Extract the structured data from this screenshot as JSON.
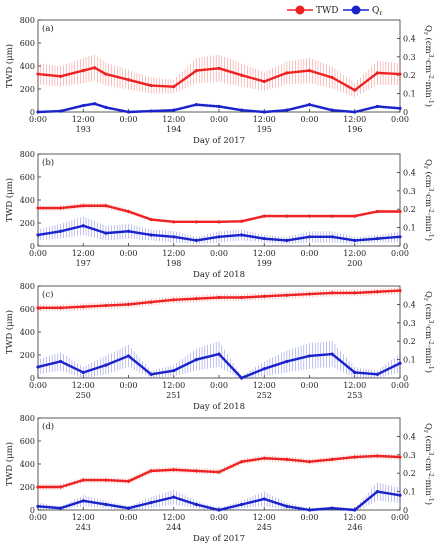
{
  "legend": {
    "twd": {
      "label": "TWD",
      "color": "#ee2222"
    },
    "q": {
      "label": "Q",
      "sub": "r",
      "color": "#1a22cc"
    }
  },
  "labels": {
    "ylabel_left": "TWD (μm)",
    "ylabel_right_main": "Q",
    "ylabel_right_sub": "r",
    "ylabel_right_rest": " (cm",
    "ylabel_right_sup1": "3",
    "ylabel_right_mid": "·cm",
    "ylabel_right_sup2": "-2",
    "ylabel_right_end": "·min",
    "ylabel_right_sup3": "-1",
    "ylabel_right_close": ")"
  },
  "chart_data": [
    {
      "type": "line",
      "panel_label": "(a)",
      "xlabel": "Day of 2017",
      "x_time_ticks": [
        "0:00",
        "12:00",
        "0:00",
        "12:00",
        "0:00",
        "12:00",
        "0:00",
        "12:00",
        "0:00"
      ],
      "x_day_ticks": [
        "193",
        "194",
        "195",
        "196"
      ],
      "ylim_left": [
        0,
        800
      ],
      "yticks_left": [
        "0",
        "200",
        "400",
        "600",
        "800"
      ],
      "ylim_right": [
        0,
        0.5
      ],
      "yticks_right": [
        "0",
        "0.1",
        "0.2",
        "0.3",
        "0.4"
      ],
      "x": [
        0,
        6,
        12,
        15,
        18,
        24,
        30,
        36,
        42,
        48,
        54,
        60,
        66,
        72,
        78,
        84,
        90,
        96
      ],
      "series": [
        {
          "name": "TWD",
          "values": [
            330,
            310,
            360,
            385,
            330,
            280,
            230,
            220,
            360,
            380,
            320,
            265,
            340,
            360,
            300,
            190,
            340,
            330
          ],
          "error": [
            90,
            90,
            110,
            115,
            100,
            85,
            70,
            60,
            110,
            120,
            100,
            80,
            100,
            110,
            95,
            60,
            105,
            95
          ]
        },
        {
          "name": "Q",
          "values": [
            0.0,
            0.005,
            0.035,
            0.045,
            0.025,
            0.0,
            0.005,
            0.01,
            0.04,
            0.03,
            0.01,
            0.0,
            0.01,
            0.04,
            0.01,
            0.0,
            0.03,
            0.02
          ],
          "error": [
            0.003,
            0.003,
            0.01,
            0.01,
            0.008,
            0.003,
            0.003,
            0.005,
            0.01,
            0.01,
            0.005,
            0.003,
            0.005,
            0.012,
            0.005,
            0.003,
            0.01,
            0.008
          ]
        }
      ]
    },
    {
      "type": "line",
      "panel_label": "(b)",
      "xlabel": "Day of 2018",
      "x_time_ticks": [
        "0:00",
        "12:00",
        "0:00",
        "12:00",
        "0:00",
        "12:00",
        "0:00",
        "12:00",
        "0:00"
      ],
      "x_day_ticks": [
        "197",
        "198",
        "199",
        "200"
      ],
      "ylim_left": [
        0,
        800
      ],
      "yticks_left": [
        "0",
        "200",
        "400",
        "600",
        "800"
      ],
      "ylim_right": [
        0,
        0.5
      ],
      "yticks_right": [
        "0",
        "0.1",
        "0.2",
        "0.3",
        "0.4"
      ],
      "x": [
        0,
        6,
        12,
        18,
        24,
        30,
        36,
        42,
        48,
        54,
        60,
        66,
        72,
        78,
        84,
        90,
        96
      ],
      "series": [
        {
          "name": "TWD",
          "values": [
            330,
            330,
            350,
            350,
            300,
            230,
            210,
            210,
            210,
            215,
            260,
            260,
            260,
            260,
            260,
            300,
            300
          ],
          "error": [
            25,
            25,
            25,
            25,
            20,
            15,
            10,
            10,
            10,
            10,
            15,
            15,
            15,
            15,
            15,
            15,
            15
          ]
        },
        {
          "name": "Q",
          "values": [
            0.06,
            0.08,
            0.11,
            0.07,
            0.08,
            0.06,
            0.05,
            0.03,
            0.05,
            0.06,
            0.04,
            0.03,
            0.05,
            0.05,
            0.03,
            0.04,
            0.05
          ],
          "error": [
            0.03,
            0.04,
            0.05,
            0.04,
            0.04,
            0.03,
            0.03,
            0.02,
            0.03,
            0.03,
            0.02,
            0.02,
            0.03,
            0.03,
            0.02,
            0.02,
            0.03
          ]
        }
      ]
    },
    {
      "type": "line",
      "panel_label": "(c)",
      "xlabel": "Day of 2018",
      "x_time_ticks": [
        "0:00",
        "12:00",
        "0:00",
        "12:00",
        "0:00",
        "12:00",
        "0:00",
        "12:00",
        "0:00"
      ],
      "x_day_ticks": [
        "250",
        "251",
        "252",
        "253"
      ],
      "ylim_left": [
        0,
        800
      ],
      "yticks_left": [
        "0",
        "200",
        "400",
        "600",
        "800"
      ],
      "ylim_right": [
        0,
        0.5
      ],
      "yticks_right": [
        "0",
        "0.1",
        "0.2",
        "0.3",
        "0.4"
      ],
      "x": [
        0,
        6,
        12,
        18,
        24,
        30,
        36,
        42,
        48,
        54,
        60,
        66,
        72,
        78,
        84,
        90,
        96
      ],
      "series": [
        {
          "name": "TWD",
          "values": [
            610,
            610,
            620,
            630,
            640,
            660,
            680,
            690,
            700,
            700,
            710,
            720,
            730,
            740,
            740,
            750,
            760
          ],
          "error": [
            30,
            30,
            30,
            30,
            30,
            30,
            30,
            30,
            30,
            30,
            30,
            30,
            30,
            30,
            30,
            30,
            30
          ]
        },
        {
          "name": "Q",
          "values": [
            0.06,
            0.09,
            0.03,
            0.07,
            0.12,
            0.02,
            0.04,
            0.1,
            0.13,
            0.0,
            0.05,
            0.09,
            0.12,
            0.13,
            0.03,
            0.02,
            0.08
          ],
          "error": [
            0.04,
            0.05,
            0.03,
            0.05,
            0.06,
            0.02,
            0.03,
            0.06,
            0.07,
            0.01,
            0.04,
            0.06,
            0.07,
            0.07,
            0.03,
            0.02,
            0.05
          ]
        }
      ]
    },
    {
      "type": "line",
      "panel_label": "(d)",
      "xlabel": "Day of 2017",
      "x_time_ticks": [
        "0:00",
        "12:00",
        "0:00",
        "12:00",
        "0:00",
        "12:00",
        "0:00",
        "12:00",
        "0:00"
      ],
      "x_day_ticks": [
        "243",
        "244",
        "245",
        "246"
      ],
      "ylim_left": [
        0,
        800
      ],
      "yticks_left": [
        "0",
        "200",
        "400",
        "600",
        "800"
      ],
      "ylim_right": [
        0,
        0.5
      ],
      "yticks_right": [
        "0",
        "0.1",
        "0.2",
        "0.3",
        "0.4"
      ],
      "x": [
        0,
        6,
        12,
        18,
        24,
        30,
        36,
        42,
        48,
        54,
        60,
        66,
        72,
        78,
        84,
        90,
        96
      ],
      "series": [
        {
          "name": "TWD",
          "values": [
            200,
            200,
            260,
            260,
            250,
            340,
            350,
            340,
            330,
            420,
            450,
            440,
            420,
            440,
            460,
            470,
            460
          ],
          "error": [
            25,
            25,
            25,
            25,
            25,
            25,
            25,
            25,
            25,
            25,
            25,
            25,
            25,
            25,
            25,
            25,
            25
          ]
        },
        {
          "name": "Q",
          "values": [
            0.02,
            0.01,
            0.05,
            0.03,
            0.01,
            0.04,
            0.07,
            0.03,
            0.0,
            0.03,
            0.06,
            0.02,
            0.0,
            0.01,
            0.0,
            0.1,
            0.08
          ],
          "error": [
            0.02,
            0.01,
            0.03,
            0.02,
            0.01,
            0.03,
            0.04,
            0.02,
            0.01,
            0.02,
            0.04,
            0.02,
            0.01,
            0.01,
            0.01,
            0.05,
            0.04
          ]
        }
      ]
    }
  ]
}
